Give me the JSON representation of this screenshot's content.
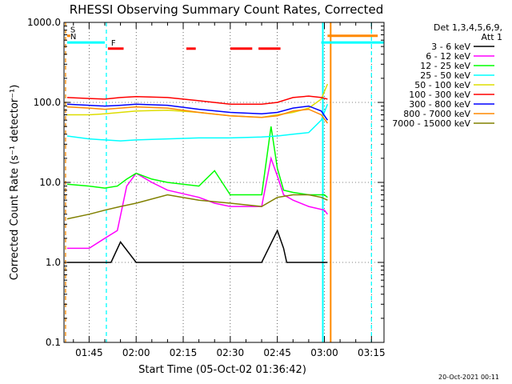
{
  "chart_data": {
    "type": "line",
    "title": "RHESSI Observing Summary Count Rates, Corrected",
    "xlabel": "Start Time (05-Oct-02 01:36:42)",
    "ylabel": "Corrected Count Rate (s⁻¹ detector⁻¹)",
    "y_scale": "log",
    "ylim": [
      0.1,
      1000.0
    ],
    "x_unit": "minutes since 00:00 UT",
    "xlim": [
      97,
      199
    ],
    "x_ticks": [
      "01:45",
      "02:00",
      "02:15",
      "02:30",
      "02:45",
      "03:00",
      "03:15"
    ],
    "y_ticks": [
      "0.1",
      "1.0",
      "10.0",
      "100.0",
      "1000.0"
    ],
    "grid": true,
    "legend_title": [
      "Det 1,3,4,5,6,9,",
      "Att 1"
    ],
    "legend_position": "top-right",
    "series": [
      {
        "name": "3 - 6 keV",
        "color": "#000000",
        "x": [
          98,
          110,
          112,
          115,
          120,
          130,
          140,
          150,
          160,
          165,
          167,
          168,
          170,
          175,
          180,
          181
        ],
        "values": [
          1.0,
          1.0,
          1.0,
          1.8,
          1.0,
          1.0,
          1.0,
          1.0,
          1.0,
          2.5,
          1.5,
          1.0,
          1.0,
          1.0,
          1.0,
          1.0
        ]
      },
      {
        "name": "6 - 12 keV",
        "color": "#ff00ff",
        "x": [
          98,
          105,
          110,
          114,
          117,
          120,
          125,
          130,
          140,
          145,
          150,
          155,
          160,
          163,
          165,
          167,
          170,
          175,
          180,
          181
        ],
        "values": [
          1.5,
          1.5,
          2.0,
          2.5,
          9.0,
          13,
          10,
          8,
          6.5,
          5.5,
          5,
          5,
          5,
          20,
          12,
          7,
          6,
          5,
          4.5,
          4.0
        ]
      },
      {
        "name": "12 - 25 keV",
        "color": "#00ff00",
        "x": [
          98,
          105,
          110,
          114,
          117,
          120,
          125,
          130,
          140,
          145,
          150,
          155,
          160,
          163,
          165,
          167,
          170,
          175,
          180,
          181
        ],
        "values": [
          9.5,
          9.0,
          8.5,
          9.0,
          11,
          13,
          11,
          10,
          9,
          14,
          7,
          7,
          7,
          50,
          15,
          8,
          7.5,
          7,
          7,
          6.5
        ]
      },
      {
        "name": "25 - 50 keV",
        "color": "#00ffff",
        "x": [
          98,
          105,
          110,
          115,
          120,
          130,
          140,
          150,
          160,
          165,
          170,
          175,
          179,
          181
        ],
        "values": [
          38,
          35,
          34,
          33,
          34,
          35,
          36,
          36,
          37,
          38,
          40,
          42,
          60,
          95
        ]
      },
      {
        "name": "50 - 100 keV",
        "color": "#dddd00",
        "x": [
          98,
          105,
          110,
          115,
          120,
          130,
          140,
          150,
          160,
          165,
          170,
          175,
          179,
          181
        ],
        "values": [
          70,
          70,
          72,
          75,
          78,
          80,
          75,
          68,
          65,
          70,
          75,
          85,
          110,
          170
        ]
      },
      {
        "name": "100 - 300 keV",
        "color": "#ff0000",
        "x": [
          98,
          105,
          110,
          115,
          120,
          130,
          140,
          150,
          160,
          165,
          170,
          175,
          179,
          181
        ],
        "values": [
          115,
          112,
          110,
          115,
          118,
          115,
          105,
          95,
          95,
          100,
          115,
          120,
          115,
          110
        ]
      },
      {
        "name": "300 - 800 keV",
        "color": "#0000ff",
        "x": [
          98,
          105,
          110,
          115,
          120,
          130,
          140,
          150,
          160,
          165,
          170,
          175,
          179,
          181
        ],
        "values": [
          95,
          92,
          90,
          92,
          95,
          92,
          82,
          75,
          72,
          75,
          85,
          90,
          78,
          60
        ]
      },
      {
        "name": "800 - 7000 keV",
        "color": "#ff8800",
        "x": [
          98,
          105,
          110,
          115,
          120,
          130,
          140,
          150,
          160,
          165,
          170,
          175,
          179,
          181
        ],
        "values": [
          88,
          85,
          82,
          85,
          88,
          85,
          75,
          68,
          65,
          68,
          78,
          82,
          70,
          55
        ]
      },
      {
        "name": "7000 - 15000 keV",
        "color": "#808000",
        "x": [
          98,
          105,
          110,
          115,
          120,
          130,
          140,
          150,
          160,
          165,
          170,
          175,
          179,
          181
        ],
        "values": [
          3.5,
          4.0,
          4.5,
          5.0,
          5.5,
          7,
          6,
          5.5,
          5,
          6.5,
          7,
          7,
          6.5,
          6.0
        ]
      }
    ],
    "flag_bars": [
      {
        "label": "S",
        "color": "#ff8800",
        "x_start": 98,
        "x_end": 99,
        "y": 680
      },
      {
        "label": "N",
        "color": "#00ffff",
        "x_start": 98,
        "x_end": 110,
        "y": 560
      },
      {
        "label": "F",
        "color": "#ff0000",
        "segments": [
          [
            111,
            116
          ],
          [
            136,
            139
          ],
          [
            150,
            157
          ],
          [
            159,
            166
          ]
        ],
        "y": 470
      },
      {
        "label": "",
        "color": "#00ffff",
        "x_start": 179,
        "x_end": 199,
        "y": 560
      },
      {
        "label": "",
        "color": "#ff8800",
        "x_start": 181,
        "x_end": 197,
        "y": 680
      }
    ],
    "vlines": [
      {
        "x": 97.5,
        "color": "#ff8800",
        "style": "dashed"
      },
      {
        "x": 110.5,
        "color": "#00ffff",
        "style": "dashed"
      },
      {
        "x": 179.5,
        "color": "#00ffff",
        "style": "solid"
      },
      {
        "x": 182,
        "color": "#ff8800",
        "style": "solid"
      },
      {
        "x": 195,
        "color": "#00ffff",
        "style": "dashed"
      }
    ]
  },
  "footer": {
    "timestamp": "20-Oct-2021 00:11"
  }
}
